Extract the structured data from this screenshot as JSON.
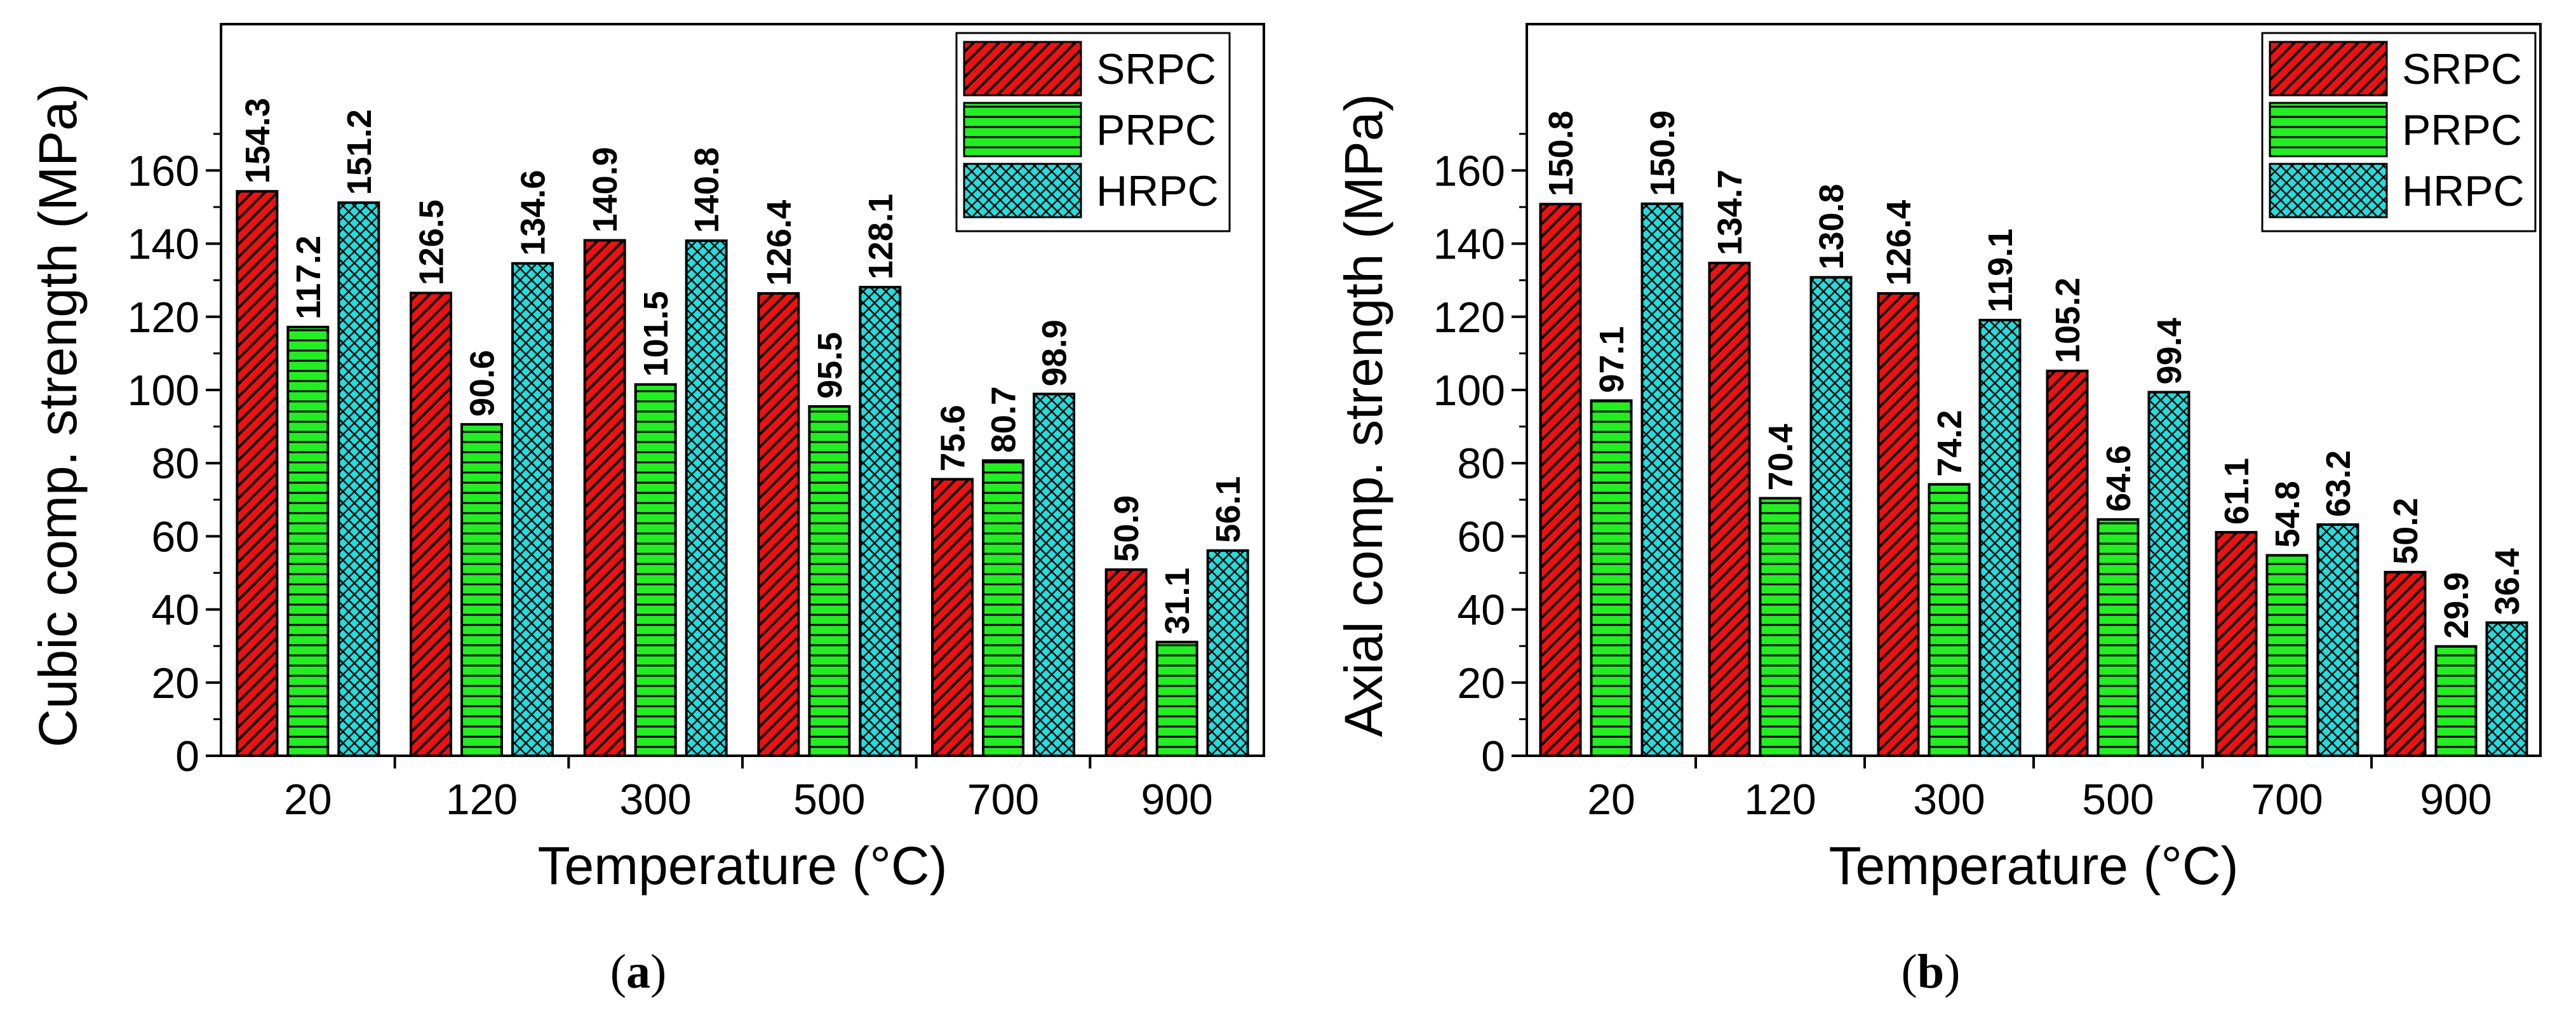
{
  "colors": {
    "SRPC": "#ee1111",
    "PRPC": "#22ee22",
    "HRPC": "#22dddd",
    "axis": "#000000",
    "background": "#ffffff"
  },
  "chart_data": [
    {
      "type": "bar",
      "panel": "a",
      "caption_open": "(",
      "caption_letter": "a",
      "caption_close": ")",
      "xlabel": "Temperature (°C)",
      "ylabel": "Cubic comp. strength (MPa)",
      "categories": [
        "20",
        "120",
        "300",
        "500",
        "700",
        "900"
      ],
      "ylim": [
        0,
        200
      ],
      "yticks": [
        0,
        20,
        40,
        60,
        80,
        100,
        120,
        140,
        160
      ],
      "legend_position": "top-right",
      "series": [
        {
          "name": "SRPC",
          "pattern": "diagonal-hatch",
          "values": [
            154.3,
            126.5,
            140.9,
            126.4,
            75.6,
            50.9
          ],
          "labels": [
            "154.3",
            "126.5",
            "140.9",
            "126.4",
            "75.6",
            "50.9"
          ]
        },
        {
          "name": "PRPC",
          "pattern": "horizontal-lines",
          "values": [
            117.2,
            90.6,
            101.5,
            95.5,
            80.7,
            31.1
          ],
          "labels": [
            "117.2",
            "90.6",
            "101.5",
            "95.5",
            "80.7",
            "31.1"
          ]
        },
        {
          "name": "HRPC",
          "pattern": "cross-hatch",
          "values": [
            151.2,
            134.6,
            140.8,
            128.1,
            98.9,
            56.1
          ],
          "labels": [
            "151.2",
            "134.6",
            "140.8",
            "128.1",
            "98.9",
            "56.1"
          ]
        }
      ]
    },
    {
      "type": "bar",
      "panel": "b",
      "caption_open": "(",
      "caption_letter": "b",
      "caption_close": ")",
      "xlabel": "Temperature (°C)",
      "ylabel": "Axial comp. strength (MPa)",
      "categories": [
        "20",
        "120",
        "300",
        "500",
        "700",
        "900"
      ],
      "ylim": [
        0,
        200
      ],
      "yticks": [
        0,
        20,
        40,
        60,
        80,
        100,
        120,
        140,
        160
      ],
      "legend_position": "top-right",
      "series": [
        {
          "name": "SRPC",
          "pattern": "diagonal-hatch",
          "values": [
            150.8,
            134.7,
            126.4,
            105.2,
            61.1,
            50.2
          ],
          "labels": [
            "150.8",
            "134.7",
            "126.4",
            "105.2",
            "61.1",
            "50.2"
          ]
        },
        {
          "name": "PRPC",
          "pattern": "horizontal-lines",
          "values": [
            97.1,
            70.4,
            74.2,
            64.6,
            54.8,
            29.9
          ],
          "labels": [
            "97.1",
            "70.4",
            "74.2",
            "64.6",
            "54.8",
            "29.9"
          ]
        },
        {
          "name": "HRPC",
          "pattern": "cross-hatch",
          "values": [
            150.9,
            130.8,
            119.1,
            99.4,
            63.2,
            36.4
          ],
          "labels": [
            "150.9",
            "130.8",
            "119.1",
            "99.4",
            "63.2",
            "36.4"
          ]
        }
      ]
    }
  ]
}
